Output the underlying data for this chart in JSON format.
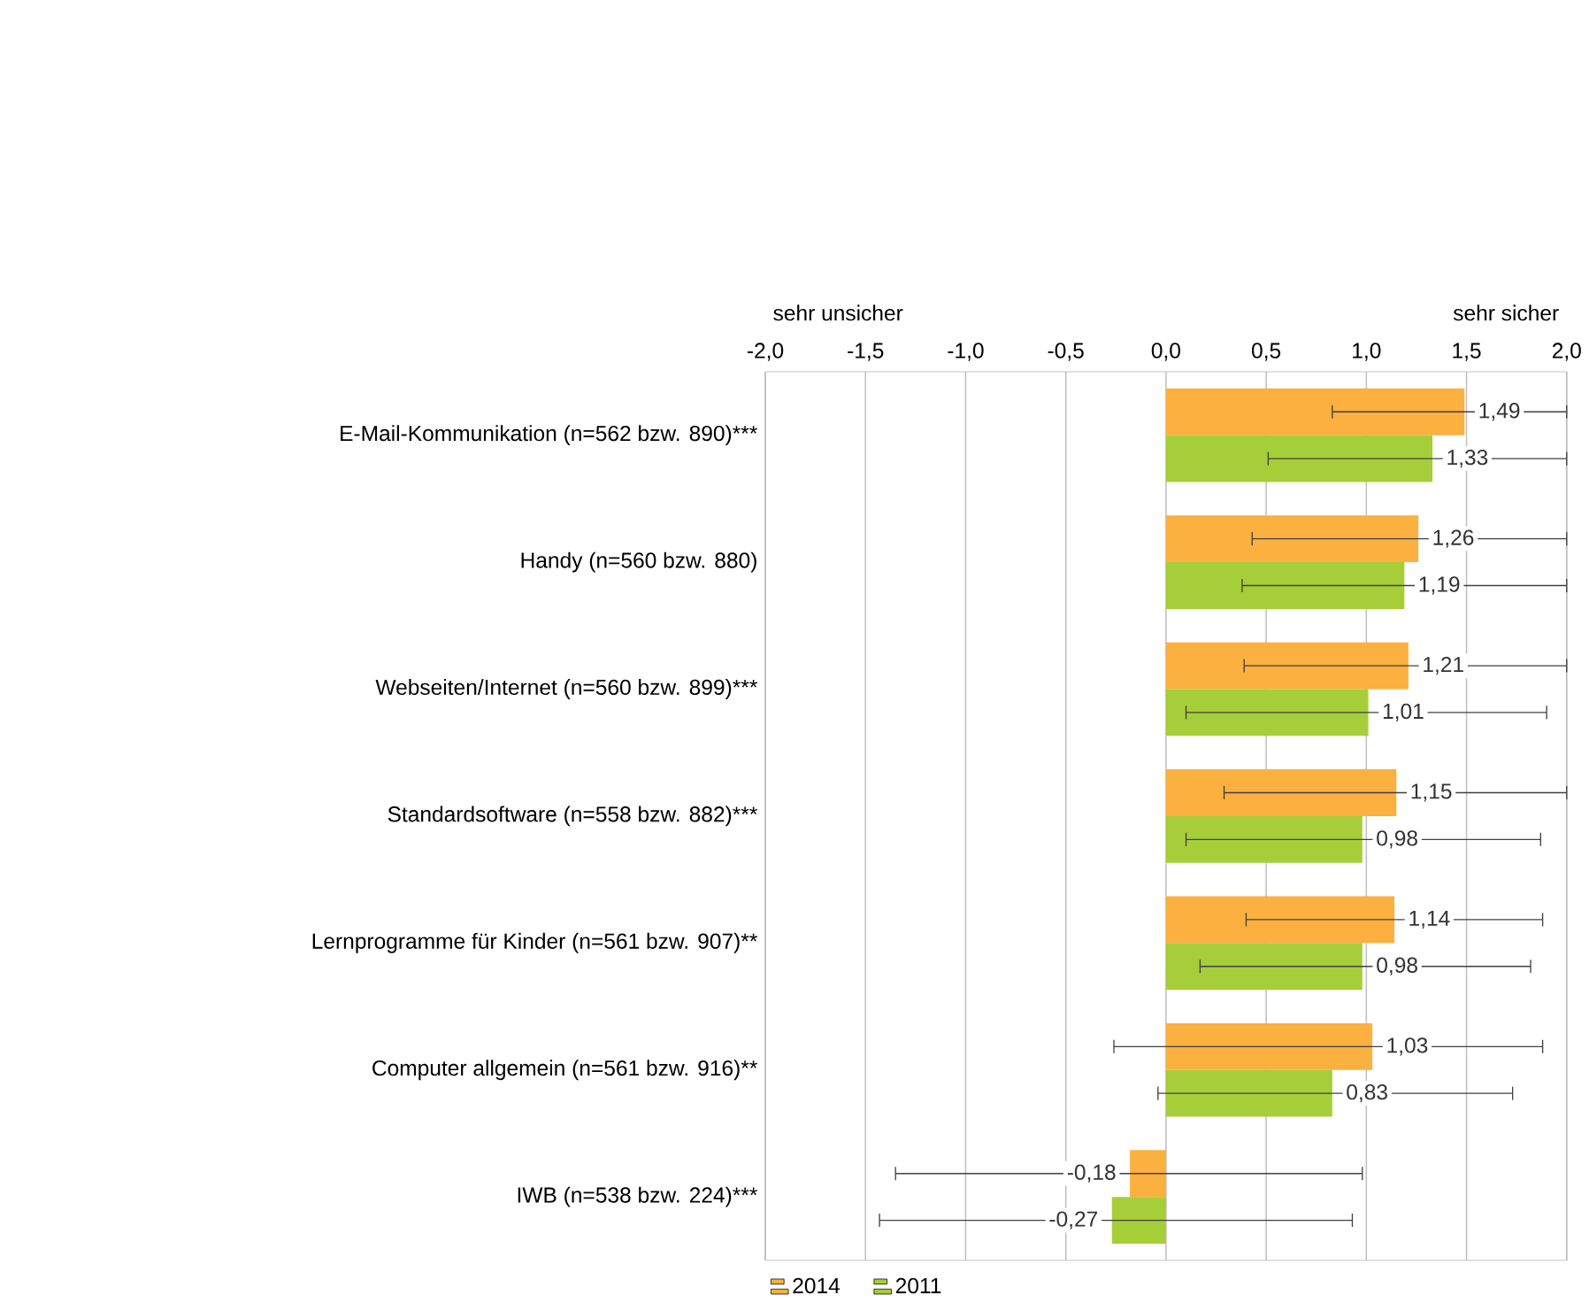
{
  "chart_data": {
    "type": "bar",
    "orientation": "horizontal",
    "categories": [
      "E-Mail-Kommunikation (n=562 bzw. 890)***",
      "Handy (n=560 bzw. 880)",
      "Webseiten/Internet (n=560 bzw. 899)***",
      "Standardsoftware (n=558 bzw. 882)***",
      "Lernprogramme für Kinder (n=561 bzw. 907)**",
      "Computer allgemein (n=561 bzw. 916)**",
      "IWB (n=538 bzw. 224)***"
    ],
    "series": [
      {
        "name": "2014",
        "color": "#fbb040",
        "values": [
          1.49,
          1.26,
          1.21,
          1.15,
          1.14,
          1.03,
          -0.18
        ],
        "value_labels": [
          "1,49",
          "1,26",
          "1,21",
          "1,15",
          "1,14",
          "1,03",
          "-0,18"
        ],
        "errors": [
          [
            0.83,
            2.0
          ],
          [
            0.43,
            2.0
          ],
          [
            0.39,
            2.0
          ],
          [
            0.29,
            2.0
          ],
          [
            0.4,
            1.88
          ],
          [
            -0.26,
            1.88
          ],
          [
            -1.35,
            0.98
          ]
        ]
      },
      {
        "name": "2011",
        "color": "#a6ce39",
        "values": [
          1.33,
          1.19,
          1.01,
          0.98,
          0.98,
          0.83,
          -0.27
        ],
        "value_labels": [
          "1,33",
          "1,19",
          "1,01",
          "0,98",
          "0,98",
          "0,83",
          "-0,27"
        ],
        "errors": [
          [
            0.51,
            2.0
          ],
          [
            0.38,
            2.0
          ],
          [
            0.1,
            1.9
          ],
          [
            0.1,
            1.87
          ],
          [
            0.17,
            1.82
          ],
          [
            -0.04,
            1.73
          ],
          [
            -1.43,
            0.93
          ]
        ]
      }
    ],
    "xlim": [
      -2.0,
      2.0
    ],
    "xticks": [
      {
        "value": -2.0,
        "label": "-2,0"
      },
      {
        "value": -1.5,
        "label": "-1,5"
      },
      {
        "value": -1.0,
        "label": "-1,0"
      },
      {
        "value": -0.5,
        "label": "-0,5"
      },
      {
        "value": 0.0,
        "label": "0,0"
      },
      {
        "value": 0.5,
        "label": "0,5"
      },
      {
        "value": 1.0,
        "label": "1,0"
      },
      {
        "value": 1.5,
        "label": "1,5"
      },
      {
        "value": 2.0,
        "label": "2,0"
      }
    ],
    "grid": "x",
    "legend": "bottom left",
    "annotations": [
      "sehr unsicher",
      "sehr sicher"
    ]
  }
}
